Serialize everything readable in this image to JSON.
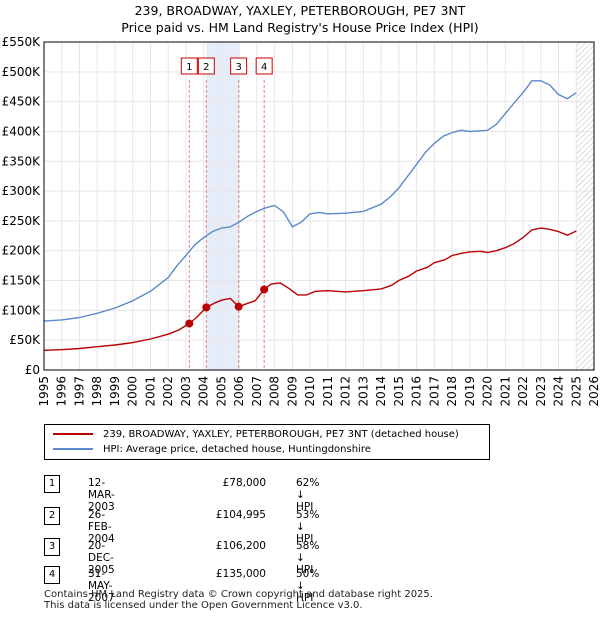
{
  "title_line1": "239, BROADWAY, YAXLEY, PETERBOROUGH, PE7 3NT",
  "title_line2": "Price paid vs. HM Land Registry's House Price Index (HPI)",
  "colors": {
    "hpi": "#5b8ac9",
    "property": "#bb0000",
    "shade": "#dce5f5",
    "grid": "#e6e6e6",
    "vline": "#e08080"
  },
  "chart_data": {
    "type": "line",
    "ylim": [
      0,
      550000
    ],
    "xlim": [
      1995,
      2026
    ],
    "y_ticks": [
      {
        "value": 0,
        "label": "£0"
      },
      {
        "value": 50000,
        "label": "£50K"
      },
      {
        "value": 100000,
        "label": "£100K"
      },
      {
        "value": 150000,
        "label": "£150K"
      },
      {
        "value": 200000,
        "label": "£200K"
      },
      {
        "value": 250000,
        "label": "£250K"
      },
      {
        "value": 300000,
        "label": "£300K"
      },
      {
        "value": 350000,
        "label": "£350K"
      },
      {
        "value": 400000,
        "label": "£400K"
      },
      {
        "value": 450000,
        "label": "£450K"
      },
      {
        "value": 500000,
        "label": "£500K"
      },
      {
        "value": 550000,
        "label": "£550K"
      }
    ],
    "x_ticks": [
      "1995",
      "1996",
      "1997",
      "1998",
      "1999",
      "2000",
      "2001",
      "2002",
      "2003",
      "2004",
      "2005",
      "2006",
      "2007",
      "2008",
      "2009",
      "2010",
      "2011",
      "2012",
      "2013",
      "2014",
      "2015",
      "2016",
      "2017",
      "2018",
      "2019",
      "2020",
      "2021",
      "2022",
      "2023",
      "2024",
      "2025",
      "2026"
    ],
    "shaded_ranges": [
      [
        2004.15,
        2005.97
      ]
    ],
    "forecast_from": 2025.0,
    "sales": [
      {
        "label": "1",
        "year": 2003.19,
        "price": 78000
      },
      {
        "label": "2",
        "year": 2004.15,
        "price": 104995
      },
      {
        "label": "3",
        "year": 2005.97,
        "price": 106200
      },
      {
        "label": "4",
        "year": 2007.41,
        "price": 135000
      }
    ],
    "series": [
      {
        "name": "239, BROADWAY, YAXLEY, PETERBOROUGH, PE7 3NT (detached house)",
        "color": "#bb0000",
        "x": [
          1995,
          1996,
          1997,
          1998,
          1999,
          2000,
          2001,
          2002,
          2002.6,
          2003.19,
          2003.6,
          2004.15,
          2004.6,
          2005,
          2005.5,
          2005.97,
          2006.4,
          2006.9,
          2007.41,
          2007.8,
          2008.3,
          2008.8,
          2009.3,
          2009.8,
          2010.3,
          2011,
          2012,
          2013,
          2014,
          2014.6,
          2015,
          2015.6,
          2016,
          2016.6,
          2017,
          2017.6,
          2018,
          2018.6,
          2019,
          2019.6,
          2020,
          2020.5,
          2021,
          2021.5,
          2022,
          2022.5,
          2023,
          2023.5,
          2024,
          2024.5,
          2025
        ],
        "y": [
          33000,
          34000,
          36000,
          39000,
          42000,
          46000,
          52000,
          60000,
          67000,
          78000,
          88000,
          104995,
          112000,
          117000,
          120000,
          106200,
          111000,
          116000,
          135000,
          144000,
          146000,
          137000,
          126000,
          126000,
          132000,
          133000,
          131000,
          133000,
          136000,
          142000,
          150000,
          158000,
          166000,
          172000,
          180000,
          185000,
          192000,
          196000,
          198000,
          199000,
          197000,
          200000,
          205000,
          212000,
          222000,
          235000,
          238000,
          236000,
          232000,
          226000,
          233000
        ]
      },
      {
        "name": "HPI: Average price, detached house, Huntingdonshire",
        "color": "#5b8ac9",
        "x": [
          1995,
          1996,
          1997,
          1998,
          1999,
          2000,
          2001,
          2002,
          2002.5,
          2003,
          2003.5,
          2004,
          2004.5,
          2005,
          2005.5,
          2006,
          2006.5,
          2007,
          2007.5,
          2008,
          2008.5,
          2009,
          2009.5,
          2010,
          2010.5,
          2011,
          2012,
          2013,
          2014,
          2014.5,
          2015,
          2015.5,
          2016,
          2016.5,
          2017,
          2017.5,
          2018,
          2018.5,
          2019,
          2019.5,
          2020,
          2020.5,
          2021,
          2021.5,
          2022,
          2022.5,
          2023,
          2023.5,
          2024,
          2024.5,
          2025
        ],
        "y": [
          82000,
          84000,
          88000,
          95000,
          104000,
          116000,
          132000,
          155000,
          175000,
          192000,
          210000,
          222000,
          232000,
          238000,
          240000,
          248000,
          258000,
          266000,
          272000,
          276000,
          265000,
          240000,
          248000,
          262000,
          264000,
          262000,
          263000,
          266000,
          278000,
          290000,
          305000,
          325000,
          345000,
          365000,
          380000,
          392000,
          398000,
          402000,
          400000,
          401000,
          402000,
          412000,
          430000,
          448000,
          465000,
          485000,
          485000,
          478000,
          462000,
          455000,
          465000
        ]
      }
    ]
  },
  "legend": {
    "property": "239, BROADWAY, YAXLEY, PETERBOROUGH, PE7 3NT (detached house)",
    "hpi": "HPI: Average price, detached house, Huntingdonshire"
  },
  "sales_table": [
    {
      "num": "1",
      "date": "12-MAR-2003",
      "price": "£78,000",
      "hpi": "62% ↓ HPI"
    },
    {
      "num": "2",
      "date": "26-FEB-2004",
      "price": "£104,995",
      "hpi": "53% ↓ HPI"
    },
    {
      "num": "3",
      "date": "20-DEC-2005",
      "price": "£106,200",
      "hpi": "58% ↓ HPI"
    },
    {
      "num": "4",
      "date": "31-MAY-2007",
      "price": "£135,000",
      "hpi": "50% ↓ HPI"
    }
  ],
  "footer_line1": "Contains HM Land Registry data © Crown copyright and database right 2025.",
  "footer_line2": "This data is licensed under the Open Government Licence v3.0."
}
